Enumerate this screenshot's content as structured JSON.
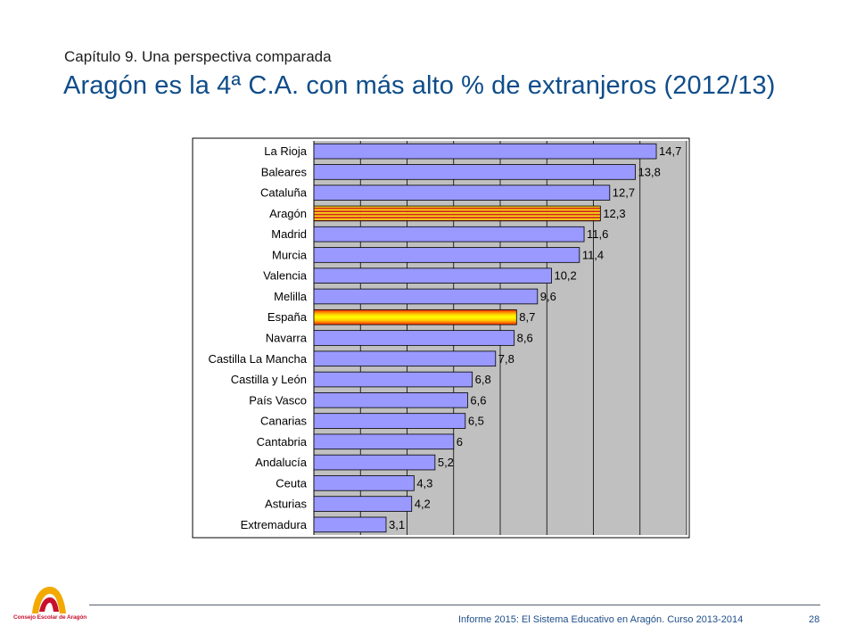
{
  "header": {
    "subtitle": "Capítulo 9. Una perspectiva comparada",
    "title": "Aragón es la 4ª C.A. con más alto % de extranjeros  (2012/13)"
  },
  "chart_data": {
    "type": "bar",
    "orientation": "horizontal",
    "categories": [
      "La Rioja",
      "Baleares",
      "Cataluña",
      "Aragón",
      "Madrid",
      "Murcia",
      "Valencia",
      "Melilla",
      "España",
      "Navarra",
      "Castilla La Mancha",
      "Castilla y León",
      "País Vasco",
      "Canarias",
      "Cantabria",
      "Andalucía",
      "Ceuta",
      "Asturias",
      "Extremadura"
    ],
    "values": [
      14.7,
      13.8,
      12.7,
      12.3,
      11.6,
      11.4,
      10.2,
      9.6,
      8.7,
      8.6,
      7.8,
      6.8,
      6.6,
      6.5,
      6,
      5.2,
      4.3,
      4.2,
      3.1
    ],
    "value_labels": [
      "14,7",
      "13,8",
      "12,7",
      "12,3",
      "11,6",
      "11,4",
      "10,2",
      "9,6",
      "8,7",
      "8,6",
      "7,8",
      "6,8",
      "6,6",
      "6,5",
      "6",
      "5,2",
      "4,3",
      "4,2",
      "3,1"
    ],
    "highlighted": {
      "Aragón": "aragon-flag",
      "España": "spain-gradient"
    },
    "xlim": [
      0,
      16
    ],
    "grid": true,
    "colors": {
      "bar": "#9999ff",
      "plot_background": "#c0c0c0",
      "grid": "#000000",
      "aragon_red": "#d52b1e",
      "aragon_yellow": "#fcdd09",
      "spain_yellow": "#ffff00",
      "spain_red": "#ff0000"
    }
  },
  "footer": {
    "text": "Informe 2015: El Sistema Educativo en Aragón. Curso 2013-2014",
    "page_number": "28",
    "logo_text": "Consejo Escolar de Aragón"
  }
}
